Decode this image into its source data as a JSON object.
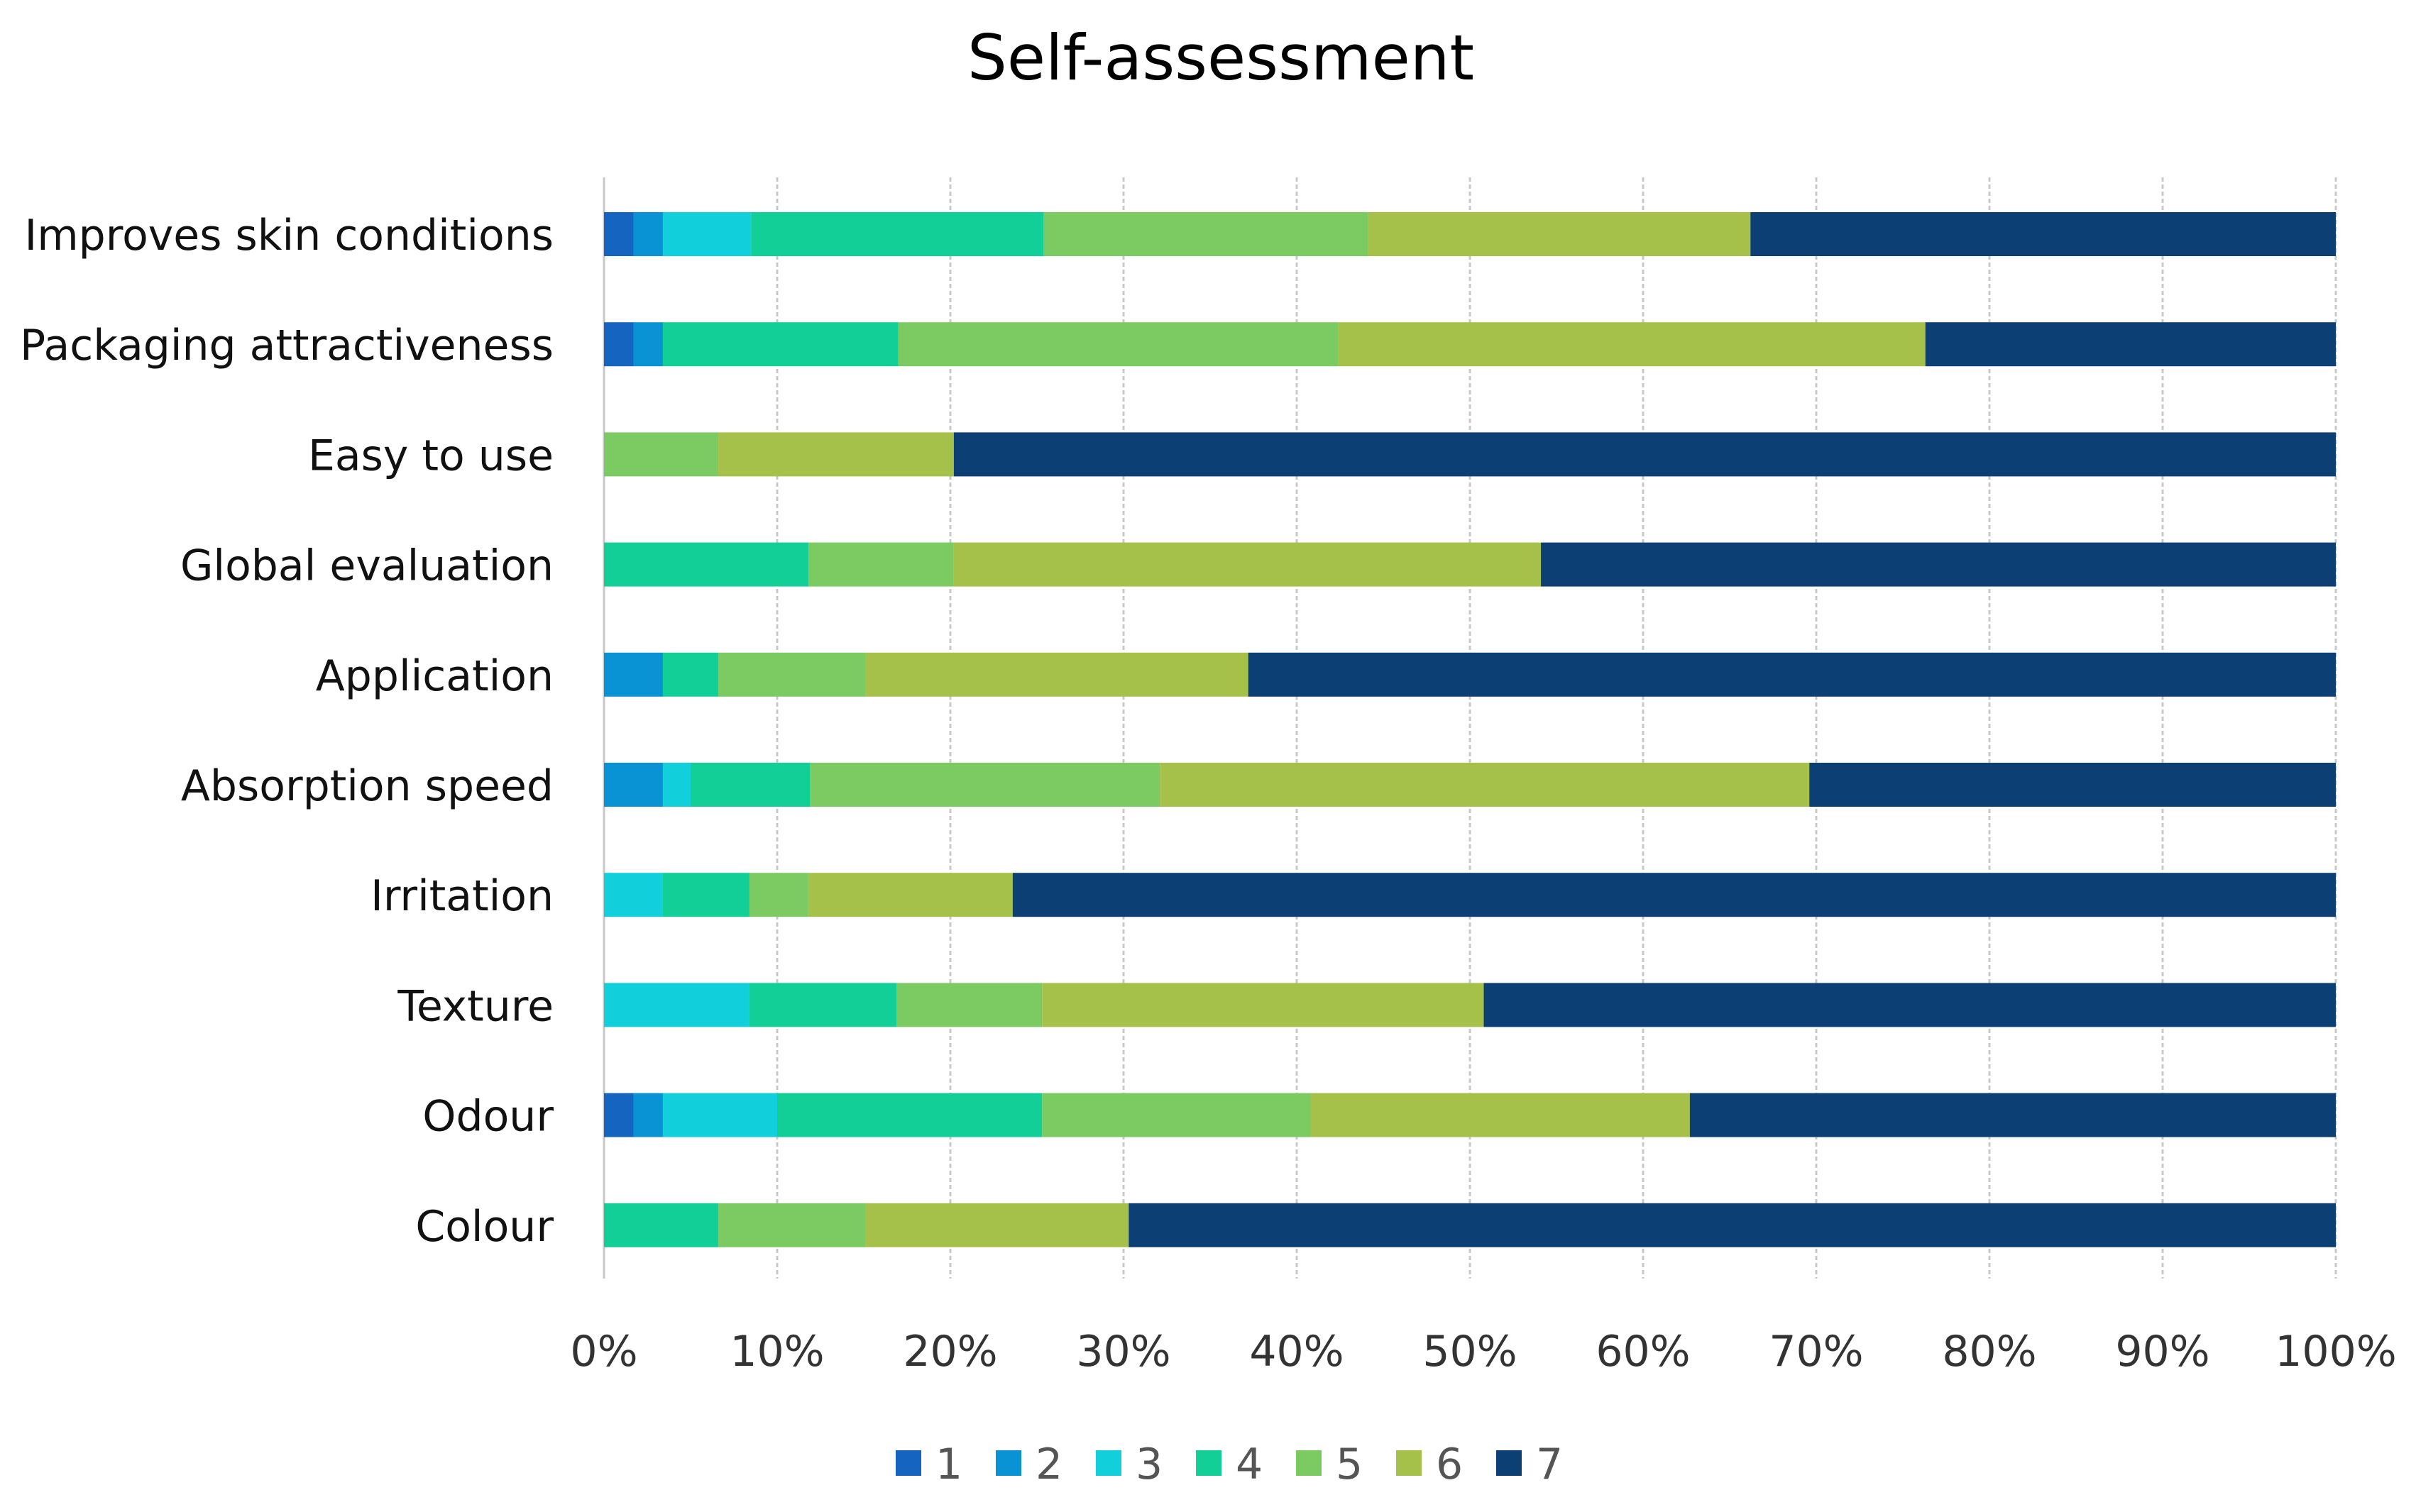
{
  "chart_data": {
    "type": "bar",
    "orientation": "horizontal",
    "stacked": "percent",
    "title": "Self-assessment",
    "xlabel": "",
    "ylabel": "",
    "xlim": [
      0,
      100
    ],
    "x_ticks": [
      "0%",
      "10%",
      "20%",
      "30%",
      "40%",
      "50%",
      "60%",
      "70%",
      "80%",
      "90%",
      "100%"
    ],
    "grid": true,
    "legend_position": "bottom",
    "categories": [
      "Improves skin conditions",
      "Packaging attractiveness",
      "Easy to use",
      "Global evaluation",
      "Application",
      "Absorption speed",
      "Irritation",
      "Texture",
      "Odour",
      "Colour"
    ],
    "series": [
      {
        "name": "1",
        "color": "#1565c0",
        "values": [
          1.7,
          1.7,
          0,
          0,
          0,
          0,
          0,
          0,
          1.7,
          0
        ]
      },
      {
        "name": "2",
        "color": "#0a93d4",
        "values": [
          1.7,
          1.7,
          0,
          0,
          3.4,
          3.4,
          0,
          0,
          1.7,
          0
        ]
      },
      {
        "name": "3",
        "color": "#12cfdc",
        "values": [
          5.1,
          0,
          0,
          0,
          0,
          1.6,
          3.4,
          8.4,
          6.6,
          0
        ]
      },
      {
        "name": "4",
        "color": "#12cf98",
        "values": [
          16.9,
          13.6,
          0,
          11.8,
          3.2,
          6.9,
          5.0,
          8.5,
          15.3,
          6.6
        ]
      },
      {
        "name": "5",
        "color": "#7ccb62",
        "values": [
          18.7,
          25.4,
          6.6,
          8.4,
          8.5,
          20.2,
          3.4,
          8.4,
          15.5,
          8.5
        ]
      },
      {
        "name": "6",
        "color": "#a6c14a",
        "values": [
          22.1,
          33.9,
          13.6,
          33.9,
          22.1,
          37.5,
          11.8,
          25.5,
          21.9,
          15.2
        ]
      },
      {
        "name": "7",
        "color": "#0c3f74",
        "values": [
          33.8,
          23.7,
          79.8,
          45.9,
          62.8,
          30.4,
          76.4,
          49.2,
          37.3,
          69.7
        ]
      }
    ]
  }
}
